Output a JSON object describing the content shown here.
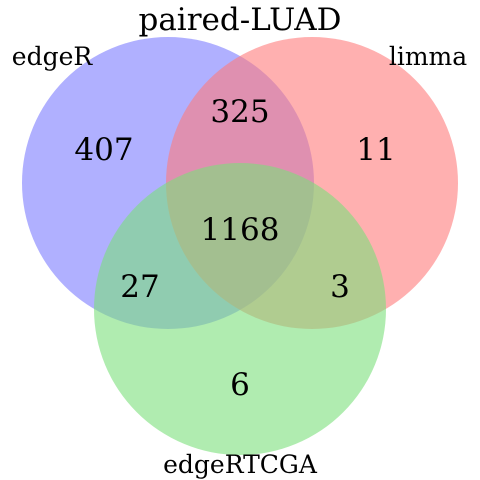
{
  "title": "paired-LUAD",
  "sets": [
    {
      "name": "edgeR",
      "color": "#7b7bff"
    },
    {
      "name": "limma",
      "color": "#ff7b7b"
    },
    {
      "name": "edgeRTCGA",
      "color": "#7be07b"
    }
  ],
  "regions": {
    "edgeR_only": "407",
    "limma_only": "11",
    "edgeRTCGA_only": "6",
    "edgeR_limma": "325",
    "edgeR_edgeRTCGA": "27",
    "limma_edgeRTCGA": "3",
    "all_three": "1168"
  }
}
